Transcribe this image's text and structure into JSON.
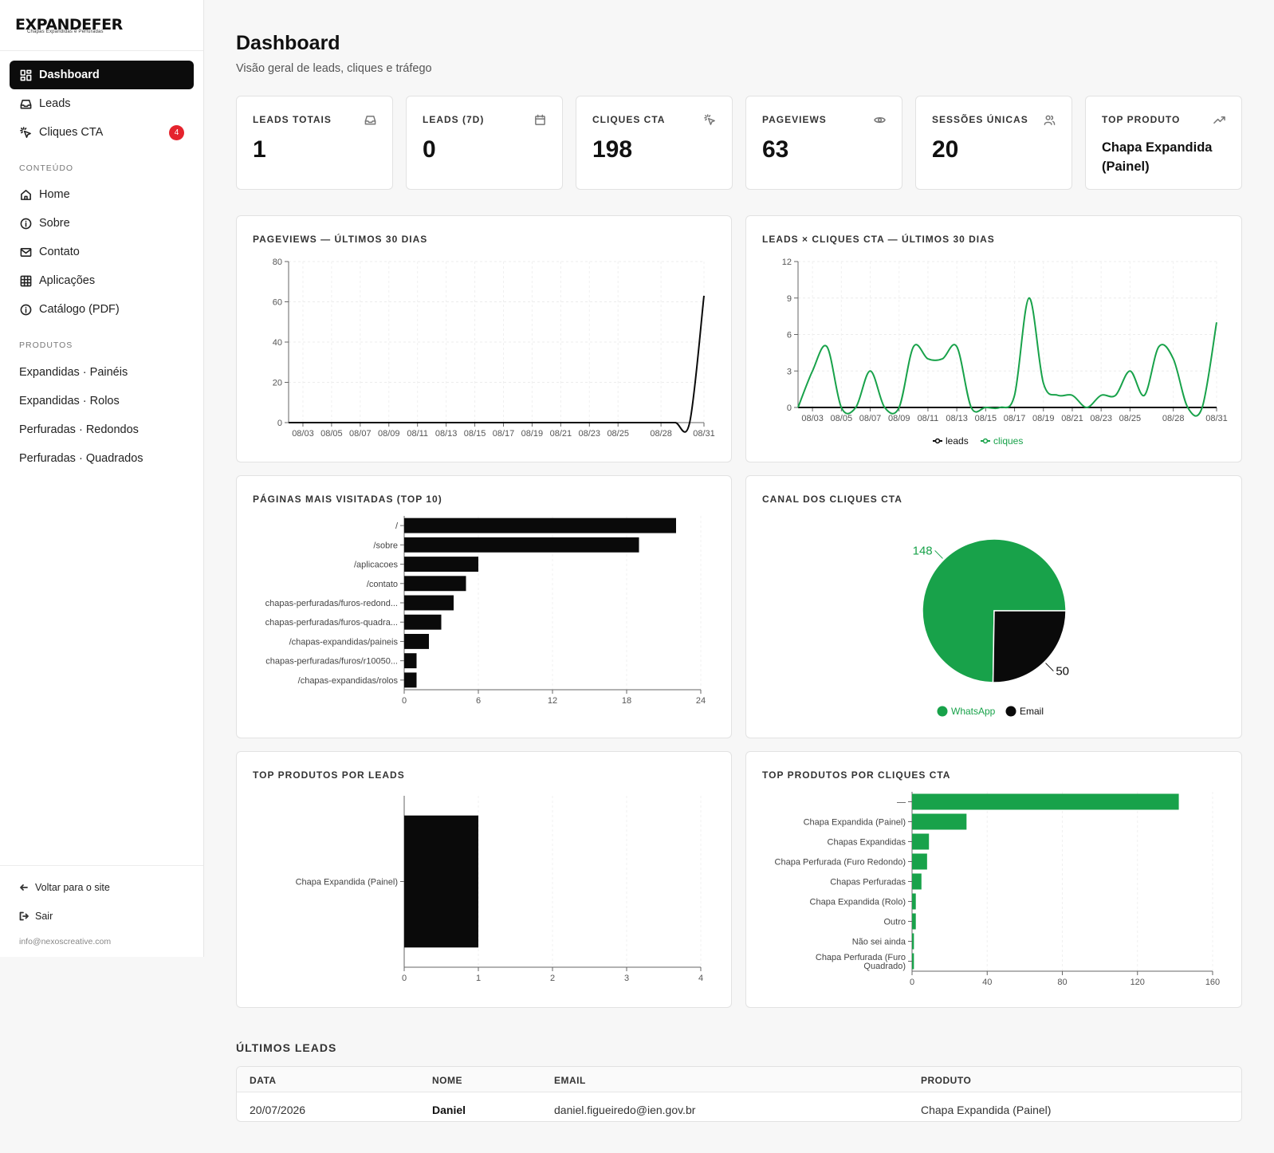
{
  "brand": {
    "name": "EXPANDEFER",
    "tagline": "Chapas Expandidas e Perfuradas"
  },
  "sidebar": {
    "nav": [
      {
        "label": "Dashboard",
        "icon": "dashboard-grid-icon",
        "active": true
      },
      {
        "label": "Leads",
        "icon": "inbox-icon"
      },
      {
        "label": "Cliques CTA",
        "icon": "pointer-click-icon",
        "badge": "4"
      }
    ],
    "content_section": "CONTEÚDO",
    "content_items": [
      {
        "label": "Home",
        "icon": "home-icon"
      },
      {
        "label": "Sobre",
        "icon": "info-icon"
      },
      {
        "label": "Contato",
        "icon": "mail-icon"
      },
      {
        "label": "Aplicações",
        "icon": "grid-icon"
      },
      {
        "label": "Catálogo (PDF)",
        "icon": "info-icon"
      }
    ],
    "products_section": "PRODUTOS",
    "product_items": [
      "Expandidas · Painéis",
      "Expandidas · Rolos",
      "Perfuradas · Redondos",
      "Perfuradas · Quadrados"
    ],
    "footer": {
      "back_label": "Voltar para o site",
      "logout_label": "Sair",
      "email": "info@nexoscreative.com"
    }
  },
  "header": {
    "title": "Dashboard",
    "subtitle": "Visão geral de leads, cliques e tráfego"
  },
  "kpis": [
    {
      "label": "LEADS TOTAIS",
      "value": "1",
      "icon": "inbox-icon"
    },
    {
      "label": "LEADS (7D)",
      "value": "0",
      "icon": "calendar-icon"
    },
    {
      "label": "CLIQUES CTA",
      "value": "198",
      "icon": "pointer-click-icon"
    },
    {
      "label": "PAGEVIEWS",
      "value": "63",
      "icon": "eye-icon"
    },
    {
      "label": "SESSÕES ÚNICAS",
      "value": "20",
      "icon": "users-icon"
    },
    {
      "label": "TOP PRODUTO",
      "value": "Chapa Expandida (Painel)",
      "icon": "trending-up-icon"
    }
  ],
  "cards": {
    "pageviews": "PAGEVIEWS — ÚLTIMOS 30 DIAS",
    "leads_clicks": "LEADS × CLIQUES CTA — ÚLTIMOS 30 DIAS",
    "top_pages": "PÁGINAS MAIS VISITADAS (TOP 10)",
    "cta_channel": "CANAL DOS CLIQUES CTA",
    "top_products_leads": "TOP PRODUTOS POR LEADS",
    "top_products_clicks": "TOP PRODUTOS POR CLIQUES CTA"
  },
  "colors": {
    "green": "#18a24a",
    "black": "#0a0a0a",
    "badge_red": "#e5232d"
  },
  "chart_data": [
    {
      "id": "pageviews",
      "type": "line",
      "x_ticks": [
        "08/03",
        "08/05",
        "08/07",
        "08/09",
        "08/11",
        "08/13",
        "08/15",
        "08/17",
        "08/19",
        "08/21",
        "08/23",
        "08/25",
        "08/28",
        "08/31"
      ],
      "x": [
        "08/02",
        "08/03",
        "08/04",
        "08/05",
        "08/06",
        "08/07",
        "08/08",
        "08/09",
        "08/10",
        "08/11",
        "08/12",
        "08/13",
        "08/14",
        "08/15",
        "08/16",
        "08/17",
        "08/18",
        "08/19",
        "08/20",
        "08/21",
        "08/22",
        "08/23",
        "08/24",
        "08/25",
        "08/26",
        "08/27",
        "08/28",
        "08/29",
        "08/30",
        "08/31"
      ],
      "series": [
        {
          "values": [
            0,
            0,
            0,
            0,
            0,
            0,
            0,
            0,
            0,
            0,
            0,
            0,
            0,
            0,
            0,
            0,
            0,
            0,
            0,
            0,
            0,
            0,
            0,
            0,
            0,
            0,
            0,
            0,
            0,
            63
          ]
        }
      ],
      "ylim": [
        0,
        80
      ],
      "y_ticks": [
        0,
        20,
        40,
        60,
        80
      ],
      "grid": true
    },
    {
      "id": "leads_clicks",
      "type": "line",
      "x_ticks": [
        "08/03",
        "08/05",
        "08/07",
        "08/09",
        "08/11",
        "08/13",
        "08/15",
        "08/17",
        "08/19",
        "08/21",
        "08/23",
        "08/25",
        "08/28",
        "08/31"
      ],
      "x": [
        "08/02",
        "08/03",
        "08/04",
        "08/05",
        "08/06",
        "08/07",
        "08/08",
        "08/09",
        "08/10",
        "08/11",
        "08/12",
        "08/13",
        "08/14",
        "08/15",
        "08/16",
        "08/17",
        "08/18",
        "08/19",
        "08/20",
        "08/21",
        "08/22",
        "08/23",
        "08/24",
        "08/25",
        "08/26",
        "08/27",
        "08/28",
        "08/29",
        "08/30",
        "08/31"
      ],
      "series": [
        {
          "name": "leads",
          "color": "#0a0a0a",
          "values": [
            0,
            0,
            0,
            0,
            0,
            0,
            0,
            0,
            0,
            0,
            0,
            0,
            0,
            0,
            0,
            0,
            0,
            0,
            0,
            0,
            0,
            0,
            0,
            0,
            0,
            0,
            0,
            0,
            0,
            0
          ]
        },
        {
          "name": "cliques",
          "color": "#18a24a",
          "values": [
            0,
            3,
            5,
            0,
            0,
            3,
            0,
            0,
            5,
            4,
            4,
            5,
            0,
            0,
            0,
            1,
            9,
            2,
            1,
            1,
            0,
            1,
            1,
            3,
            1,
            5,
            4,
            0,
            0,
            7
          ]
        }
      ],
      "ylim": [
        0,
        12
      ],
      "y_ticks": [
        0,
        3,
        6,
        9,
        12
      ],
      "legend": "bottom",
      "grid": true
    },
    {
      "id": "top_pages",
      "type": "bar",
      "orientation": "horizontal",
      "categories": [
        "/",
        "/sobre",
        "/aplicacoes",
        "/contato",
        "chapas-perfuradas/furos-redond...",
        "chapas-perfuradas/furos-quadra...",
        "/chapas-expandidas/paineis",
        "chapas-perfuradas/furos/r10050...",
        "/chapas-expandidas/rolos"
      ],
      "values": [
        22,
        19,
        6,
        5,
        4,
        3,
        2,
        1,
        1
      ],
      "xlim": [
        0,
        24
      ],
      "x_ticks": [
        0,
        6,
        12,
        18,
        24
      ],
      "color": "#0a0a0a"
    },
    {
      "id": "cta_channel",
      "type": "pie",
      "labels": [
        "WhatsApp",
        "Email"
      ],
      "values": [
        148,
        50
      ],
      "colors": [
        "#18a24a",
        "#0a0a0a"
      ],
      "legend": "bottom"
    },
    {
      "id": "top_products_leads",
      "type": "bar",
      "orientation": "horizontal",
      "categories": [
        "Chapa Expandida (Painel)"
      ],
      "values": [
        1
      ],
      "xlim": [
        0,
        4
      ],
      "x_ticks": [
        0,
        1,
        2,
        3,
        4
      ],
      "color": "#0a0a0a"
    },
    {
      "id": "top_products_clicks",
      "type": "bar",
      "orientation": "horizontal",
      "categories": [
        "—",
        "Chapa Expandida (Painel)",
        "Chapas Expandidas",
        "Chapa Perfurada (Furo Redondo)",
        "Chapas Perfuradas",
        "Chapa Expandida (Rolo)",
        "Outro",
        "Não sei ainda",
        "Chapa Perfurada (Furo Quadrado)"
      ],
      "values": [
        142,
        29,
        9,
        8,
        5,
        2,
        2,
        1,
        1
      ],
      "xlim": [
        0,
        160
      ],
      "x_ticks": [
        0,
        40,
        80,
        120,
        160
      ],
      "color": "#18a24a"
    }
  ],
  "latest_leads": {
    "title": "ÚLTIMOS LEADS",
    "columns": [
      "DATA",
      "NOME",
      "EMAIL",
      "PRODUTO"
    ],
    "rows": [
      {
        "date": "20/07/2026",
        "name": "Daniel",
        "email": "daniel.figueiredo@ien.gov.br",
        "product": "Chapa Expandida (Painel)"
      }
    ]
  }
}
